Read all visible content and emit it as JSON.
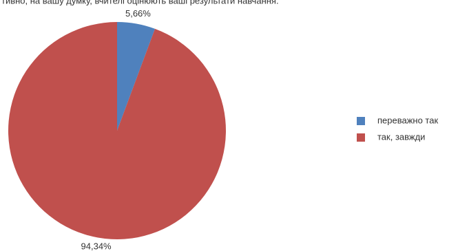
{
  "chart_data": {
    "type": "pie",
    "title": "тивно, на вашу думку, вчителі оцінюють ваші результати навчання.",
    "categories": [
      "переважно так",
      "так, завжди"
    ],
    "values": [
      5.66,
      94.34
    ],
    "value_labels": [
      "5,66%",
      "94,34%"
    ],
    "colors": [
      "#4f81bd",
      "#c0504d"
    ],
    "legend": "right"
  }
}
